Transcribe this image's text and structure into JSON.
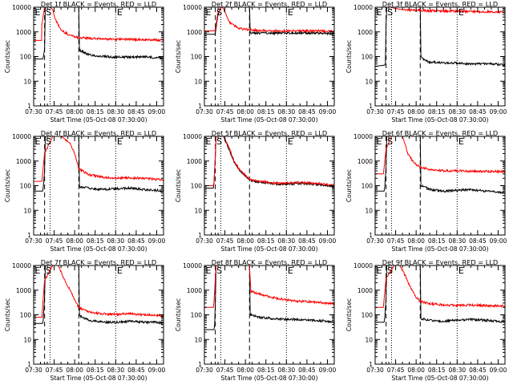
{
  "figure": {
    "x_tick_labels": [
      "07:30",
      "07:45",
      "08:00",
      "08:15",
      "08:30",
      "08:45",
      "09:00"
    ],
    "y_tick_labels": [
      "1",
      "10",
      "100",
      "1000",
      "10000"
    ],
    "colors": {
      "events": "#000000",
      "lld": "#ff0000",
      "axes": "#000000",
      "background": "#ffffff"
    }
  },
  "chart_data": [
    {
      "type": "line",
      "title": "Det 1f BLACK = Events, RED = LLD",
      "xlabel": "Start Time (05-Oct-08 07:30:00)",
      "ylabel": "Counts/sec",
      "x_unit": "minutes after 07:30",
      "xlim": [
        0,
        95
      ],
      "ylim": [
        1,
        10000
      ],
      "y_scale": "log",
      "markers": [
        {
          "minute": 0,
          "label": "E"
        },
        {
          "minute": 8,
          "label": "S"
        },
        {
          "minute": 60,
          "label": "E"
        }
      ],
      "dashed_lines": [
        8,
        33
      ],
      "dotted_lines": [
        12,
        60
      ],
      "series": [
        {
          "name": "BLACK = Events",
          "color": "#000000",
          "x": [
            0,
            6.5,
            7,
            8,
            8.5,
            33,
            33.5,
            40,
            50,
            60,
            70,
            80,
            90,
            95
          ],
          "values": [
            80,
            80,
            90,
            200,
            10000,
            10000,
            180,
            120,
            100,
            95,
            95,
            100,
            90,
            90
          ]
        },
        {
          "name": "RED = LLD",
          "color": "#ff0000",
          "x": [
            0,
            5.8,
            6,
            8,
            10,
            12,
            14,
            16,
            20,
            25,
            30,
            33,
            40,
            50,
            60,
            70,
            80,
            90,
            95
          ],
          "values": [
            450,
            450,
            2000,
            10000,
            10000,
            10000,
            8000,
            3000,
            1200,
            800,
            650,
            580,
            550,
            520,
            500,
            500,
            480,
            470,
            460
          ]
        }
      ]
    },
    {
      "type": "line",
      "title": "Det 2f BLACK = Events, RED = LLD",
      "xlabel": "Start Time (05-Oct-08 07:30:00)",
      "ylabel": "Counts/sec",
      "x_unit": "minutes after 07:30",
      "xlim": [
        0,
        95
      ],
      "ylim": [
        1,
        10000
      ],
      "y_scale": "log",
      "markers": [
        {
          "minute": 0,
          "label": "E"
        },
        {
          "minute": 8,
          "label": "S"
        },
        {
          "minute": 60,
          "label": "E"
        }
      ],
      "dashed_lines": [
        8,
        33
      ],
      "dotted_lines": [
        12,
        60
      ],
      "series": [
        {
          "name": "BLACK = Events",
          "color": "#000000",
          "x": [
            0,
            7.5,
            8,
            10,
            12,
            12.5,
            33,
            33.5,
            40,
            60,
            80,
            95
          ],
          "values": [
            800,
            800,
            900,
            5000,
            10000,
            10000,
            10000,
            900,
            900,
            900,
            900,
            850
          ]
        },
        {
          "name": "RED = LLD",
          "color": "#ff0000",
          "x": [
            0,
            7.5,
            8,
            10,
            12,
            14,
            18,
            25,
            33,
            40,
            50,
            60,
            70,
            80,
            90,
            95
          ],
          "values": [
            1100,
            1100,
            1300,
            6000,
            10000,
            9000,
            2500,
            1400,
            1200,
            1150,
            1120,
            1100,
            1100,
            1100,
            1080,
            1050
          ]
        }
      ]
    },
    {
      "type": "line",
      "title": "Det 3f BLACK = Events, RED = LLD",
      "xlabel": "Start Time (05-Oct-08 07:30:00)",
      "ylabel": "Counts/sec",
      "x_unit": "minutes after 07:30",
      "xlim": [
        0,
        95
      ],
      "ylim": [
        1,
        10000
      ],
      "y_scale": "log",
      "markers": [
        {
          "minute": 0,
          "label": "E"
        },
        {
          "minute": 8,
          "label": "S"
        },
        {
          "minute": 60,
          "label": "E"
        }
      ],
      "dashed_lines": [
        8,
        33
      ],
      "dotted_lines": [
        12,
        60
      ],
      "series": [
        {
          "name": "BLACK = Events",
          "color": "#000000",
          "x": [
            0,
            7,
            7.5,
            8,
            8.5,
            33,
            33.5,
            36,
            40,
            50,
            60,
            70,
            80,
            90,
            95
          ],
          "values": [
            40,
            45,
            50,
            2000,
            10000,
            10000,
            100,
            70,
            60,
            55,
            55,
            50,
            52,
            48,
            45
          ]
        },
        {
          "name": "RED = LLD",
          "color": "#ff0000",
          "x": [
            0,
            6,
            6.5,
            8,
            12,
            14,
            20,
            30,
            40,
            50,
            60,
            70,
            80,
            90,
            95
          ],
          "values": [
            10000,
            10000,
            10000,
            10000,
            10000,
            9000,
            8000,
            7500,
            7200,
            7000,
            6800,
            6700,
            6600,
            6500,
            6500
          ]
        }
      ]
    },
    {
      "type": "line",
      "title": "Det 4f BLACK = Events, RED = LLD",
      "xlabel": "Start Time (05-Oct-08 07:30:00)",
      "ylabel": "Counts/sec",
      "x_unit": "minutes after 07:30",
      "xlim": [
        0,
        95
      ],
      "ylim": [
        1,
        10000
      ],
      "y_scale": "log",
      "markers": [
        {
          "minute": 0,
          "label": "E"
        },
        {
          "minute": 8,
          "label": "S"
        },
        {
          "minute": 60,
          "label": "E"
        }
      ],
      "dashed_lines": [
        8,
        33
      ],
      "dotted_lines": [
        12,
        60
      ],
      "series": [
        {
          "name": "BLACK = Events",
          "color": "#000000",
          "x": [
            0,
            6.5,
            7,
            8,
            8.5,
            33,
            33.5,
            40,
            50,
            60,
            70,
            80,
            90,
            95
          ],
          "values": [
            60,
            60,
            80,
            400,
            10000,
            10000,
            90,
            80,
            70,
            75,
            80,
            70,
            65,
            60
          ]
        },
        {
          "name": "RED = LLD",
          "color": "#ff0000",
          "x": [
            0,
            6,
            6.5,
            8,
            14,
            20,
            26,
            30,
            33,
            40,
            50,
            60,
            70,
            80,
            90,
            95
          ],
          "values": [
            150,
            150,
            300,
            2000,
            10000,
            10000,
            6000,
            2000,
            500,
            280,
            220,
            200,
            210,
            200,
            180,
            170
          ]
        }
      ]
    },
    {
      "type": "line",
      "title": "Det 5f BLACK = Events, RED = LLD",
      "xlabel": "Start Time (05-Oct-08 07:30:00)",
      "ylabel": "Counts/sec",
      "x_unit": "minutes after 07:30",
      "xlim": [
        0,
        95
      ],
      "ylim": [
        1,
        10000
      ],
      "y_scale": "log",
      "markers": [
        {
          "minute": 0,
          "label": "E"
        },
        {
          "minute": 8,
          "label": "S"
        },
        {
          "minute": 60,
          "label": "E"
        }
      ],
      "dashed_lines": [
        8,
        33
      ],
      "dotted_lines": [
        12,
        60
      ],
      "series": [
        {
          "name": "BLACK = Events",
          "color": "#000000",
          "x": [
            0,
            6.5,
            7,
            8,
            8.5,
            14,
            18,
            22,
            26,
            30,
            33,
            40,
            50,
            60,
            70,
            80,
            90,
            95
          ],
          "values": [
            80,
            80,
            120,
            1500,
            10000,
            10000,
            3000,
            800,
            400,
            250,
            170,
            140,
            120,
            115,
            125,
            115,
            100,
            95
          ]
        },
        {
          "name": "RED = LLD",
          "color": "#ff0000",
          "x": [
            0,
            6.5,
            7,
            8,
            8.5,
            14,
            18,
            22,
            26,
            30,
            33,
            40,
            50,
            60,
            70,
            80,
            90,
            95
          ],
          "values": [
            100,
            100,
            130,
            1800,
            10000,
            10000,
            3500,
            900,
            420,
            260,
            180,
            150,
            130,
            125,
            135,
            125,
            110,
            100
          ]
        }
      ]
    },
    {
      "type": "line",
      "title": "Det 6f BLACK = Events, RED = LLD",
      "xlabel": "Start Time (05-Oct-08 07:30:00)",
      "ylabel": "Counts/sec",
      "x_unit": "minutes after 07:30",
      "xlim": [
        0,
        95
      ],
      "ylim": [
        1,
        10000
      ],
      "y_scale": "log",
      "markers": [
        {
          "minute": 0,
          "label": "E"
        },
        {
          "minute": 8,
          "label": "S"
        },
        {
          "minute": 60,
          "label": "E"
        }
      ],
      "dashed_lines": [
        8,
        33
      ],
      "dotted_lines": [
        12,
        60
      ],
      "series": [
        {
          "name": "BLACK = Events",
          "color": "#000000",
          "x": [
            0,
            6.5,
            7,
            8,
            8.5,
            33,
            33.5,
            40,
            50,
            60,
            70,
            80,
            90,
            95
          ],
          "values": [
            60,
            60,
            80,
            600,
            10000,
            10000,
            100,
            70,
            60,
            65,
            70,
            60,
            55,
            50
          ]
        },
        {
          "name": "RED = LLD",
          "color": "#ff0000",
          "x": [
            0,
            6,
            6.5,
            8,
            12,
            20,
            24,
            28,
            33,
            40,
            50,
            60,
            70,
            80,
            90,
            95
          ],
          "values": [
            300,
            300,
            500,
            3000,
            10000,
            10000,
            2000,
            900,
            550,
            450,
            400,
            400,
            380,
            380,
            380,
            370
          ]
        }
      ]
    },
    {
      "type": "line",
      "title": "Det 7f BLACK = Events, RED = LLD",
      "xlabel": "Start Time (05-Oct-08 07:30:00)",
      "ylabel": "Counts/sec",
      "x_unit": "minutes after 07:30",
      "xlim": [
        0,
        95
      ],
      "ylim": [
        1,
        10000
      ],
      "y_scale": "log",
      "markers": [
        {
          "minute": 0,
          "label": "E"
        },
        {
          "minute": 8,
          "label": "S"
        },
        {
          "minute": 60,
          "label": "E"
        }
      ],
      "dashed_lines": [
        8,
        33
      ],
      "dotted_lines": [
        12,
        60
      ],
      "series": [
        {
          "name": "BLACK = Events",
          "color": "#000000",
          "x": [
            0,
            6.5,
            7,
            8,
            8.5,
            33,
            33.5,
            40,
            50,
            60,
            70,
            80,
            90,
            95
          ],
          "values": [
            45,
            45,
            60,
            500,
            10000,
            10000,
            90,
            60,
            50,
            50,
            55,
            50,
            50,
            45
          ]
        },
        {
          "name": "RED = LLD",
          "color": "#ff0000",
          "x": [
            0,
            6,
            6.5,
            8,
            14,
            18,
            22,
            26,
            30,
            33,
            40,
            50,
            60,
            70,
            80,
            90,
            95
          ],
          "values": [
            80,
            80,
            200,
            2500,
            10000,
            10000,
            3000,
            1200,
            400,
            200,
            130,
            110,
            105,
            110,
            100,
            95,
            90
          ]
        }
      ]
    },
    {
      "type": "line",
      "title": "Det 8f BLACK = Events, RED = LLD",
      "xlabel": "Start Time (05-Oct-08 07:30:00)",
      "ylabel": "Counts/sec",
      "x_unit": "minutes after 07:30",
      "xlim": [
        0,
        95
      ],
      "ylim": [
        1,
        10000
      ],
      "y_scale": "log",
      "markers": [
        {
          "minute": 0,
          "label": "E"
        },
        {
          "minute": 8,
          "label": "S"
        },
        {
          "minute": 60,
          "label": "E"
        }
      ],
      "dashed_lines": [
        8,
        33
      ],
      "dotted_lines": [
        12,
        60
      ],
      "series": [
        {
          "name": "BLACK = Events",
          "color": "#000000",
          "x": [
            0,
            7,
            7.5,
            8,
            8.5,
            33,
            33.5,
            40,
            50,
            60,
            70,
            80,
            90,
            95
          ],
          "values": [
            25,
            25,
            40,
            300,
            10000,
            10000,
            100,
            80,
            70,
            65,
            65,
            60,
            55,
            50
          ]
        },
        {
          "name": "RED = LLD",
          "color": "#ff0000",
          "x": [
            0,
            6.5,
            7,
            8,
            8.5,
            33,
            34,
            40,
            50,
            60,
            70,
            80,
            90,
            95
          ],
          "values": [
            200,
            200,
            300,
            3000,
            10000,
            10000,
            900,
            700,
            500,
            400,
            350,
            330,
            300,
            280
          ]
        }
      ]
    },
    {
      "type": "line",
      "title": "Det 9f BLACK = Events, RED = LLD",
      "xlabel": "Start Time (05-Oct-08 07:30:00)",
      "ylabel": "Counts/sec",
      "x_unit": "minutes after 07:30",
      "xlim": [
        0,
        95
      ],
      "ylim": [
        1,
        10000
      ],
      "y_scale": "log",
      "markers": [
        {
          "minute": 0,
          "label": "E"
        },
        {
          "minute": 8,
          "label": "S"
        },
        {
          "minute": 60,
          "label": "E"
        }
      ],
      "dashed_lines": [
        8,
        33
      ],
      "dotted_lines": [
        12,
        60
      ],
      "series": [
        {
          "name": "BLACK = Events",
          "color": "#000000",
          "x": [
            0,
            6.5,
            7,
            8,
            8.5,
            33,
            33.5,
            40,
            50,
            60,
            70,
            80,
            90,
            95
          ],
          "values": [
            50,
            50,
            70,
            500,
            10000,
            10000,
            70,
            60,
            55,
            60,
            65,
            60,
            55,
            50
          ]
        },
        {
          "name": "RED = LLD",
          "color": "#ff0000",
          "x": [
            0,
            6,
            6.5,
            8,
            14,
            18,
            22,
            26,
            30,
            33,
            40,
            50,
            60,
            70,
            80,
            90,
            95
          ],
          "values": [
            200,
            200,
            400,
            3000,
            10000,
            10000,
            4000,
            1200,
            500,
            350,
            280,
            250,
            240,
            250,
            240,
            230,
            230
          ]
        }
      ]
    }
  ]
}
